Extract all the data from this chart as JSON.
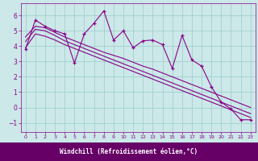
{
  "title": "",
  "xlabel": "Windchill (Refroidissement éolien,°C)",
  "background_color": "#cce8e8",
  "line_color": "#880088",
  "grid_color": "#99cccc",
  "xlabel_bg": "#660066",
  "xlabel_fg": "#ffffff",
  "xlim": [
    -0.5,
    23.5
  ],
  "ylim": [
    -1.6,
    6.8
  ],
  "xticks": [
    0,
    1,
    2,
    3,
    4,
    5,
    6,
    7,
    8,
    9,
    10,
    11,
    12,
    13,
    14,
    15,
    16,
    17,
    18,
    19,
    20,
    21,
    22,
    23
  ],
  "yticks": [
    -1,
    0,
    1,
    2,
    3,
    4,
    5,
    6
  ],
  "line1_x": [
    0,
    1,
    2,
    3,
    4,
    5,
    6,
    7,
    8,
    9,
    10,
    11,
    12,
    13,
    14,
    15,
    16,
    17,
    18,
    19,
    20,
    21,
    22,
    23
  ],
  "line1_y": [
    3.8,
    5.7,
    5.3,
    5.0,
    4.8,
    2.9,
    4.8,
    5.5,
    6.3,
    4.4,
    5.0,
    3.9,
    4.35,
    4.4,
    4.1,
    2.55,
    4.7,
    3.1,
    2.7,
    1.35,
    0.35,
    -0.1,
    -0.8,
    -0.8
  ],
  "line2_x": [
    0,
    1,
    2,
    3,
    4,
    5,
    6,
    7,
    8,
    9,
    10,
    11,
    12,
    13,
    14,
    15,
    16,
    17,
    18,
    19,
    20,
    21,
    22,
    23
  ],
  "line2_y": [
    4.6,
    5.3,
    5.2,
    4.9,
    4.6,
    4.35,
    4.1,
    3.85,
    3.6,
    3.4,
    3.2,
    2.95,
    2.7,
    2.5,
    2.25,
    2.0,
    1.75,
    1.5,
    1.25,
    1.0,
    0.75,
    0.5,
    0.25,
    0.0
  ],
  "line3_x": [
    0,
    1,
    2,
    3,
    4,
    5,
    6,
    7,
    8,
    9,
    10,
    11,
    12,
    13,
    14,
    15,
    16,
    17,
    18,
    19,
    20,
    21,
    22,
    23
  ],
  "line3_y": [
    4.3,
    5.1,
    5.0,
    4.7,
    4.35,
    4.1,
    3.85,
    3.6,
    3.35,
    3.1,
    2.85,
    2.6,
    2.35,
    2.1,
    1.85,
    1.6,
    1.35,
    1.1,
    0.85,
    0.6,
    0.35,
    0.1,
    -0.15,
    -0.4
  ],
  "line4_x": [
    0,
    1,
    2,
    3,
    4,
    5,
    6,
    7,
    8,
    9,
    10,
    11,
    12,
    13,
    14,
    15,
    16,
    17,
    18,
    19,
    20,
    21,
    22,
    23
  ],
  "line4_y": [
    3.9,
    4.8,
    4.65,
    4.4,
    4.1,
    3.85,
    3.6,
    3.35,
    3.1,
    2.85,
    2.6,
    2.35,
    2.1,
    1.85,
    1.6,
    1.35,
    1.1,
    0.85,
    0.6,
    0.35,
    0.1,
    -0.15,
    -0.4,
    -0.65
  ]
}
